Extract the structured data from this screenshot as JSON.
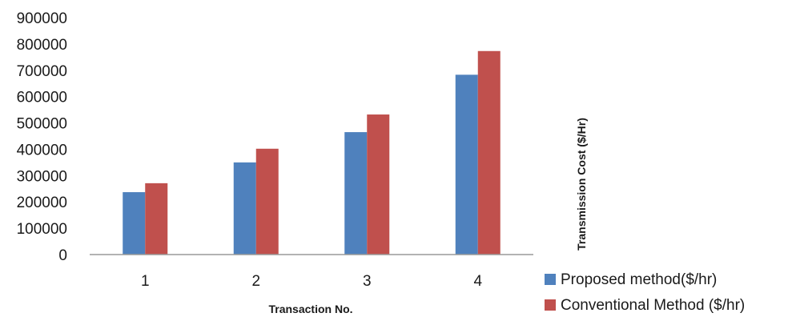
{
  "chart_data": {
    "type": "bar",
    "title": "",
    "xlabel": "Transaction No.",
    "ylabel": "Transmission Cost ($/Hr)",
    "categories": [
      "1",
      "2",
      "3",
      "4"
    ],
    "ylim": [
      0,
      900000
    ],
    "yticks": [
      "0",
      "100000",
      "200000",
      "300000",
      "400000",
      "500000",
      "600000",
      "700000",
      "800000",
      "900000"
    ],
    "grid": false,
    "legend_position": "bottom-right",
    "series": [
      {
        "name": "Proposed method($/hr)",
        "values": [
          237000,
          350000,
          465000,
          683000
        ],
        "color": "#4f81bd"
      },
      {
        "name": "Conventional Method ($/hr)",
        "values": [
          271000,
          402000,
          532000,
          773000
        ],
        "color": "#c0504d"
      }
    ]
  }
}
